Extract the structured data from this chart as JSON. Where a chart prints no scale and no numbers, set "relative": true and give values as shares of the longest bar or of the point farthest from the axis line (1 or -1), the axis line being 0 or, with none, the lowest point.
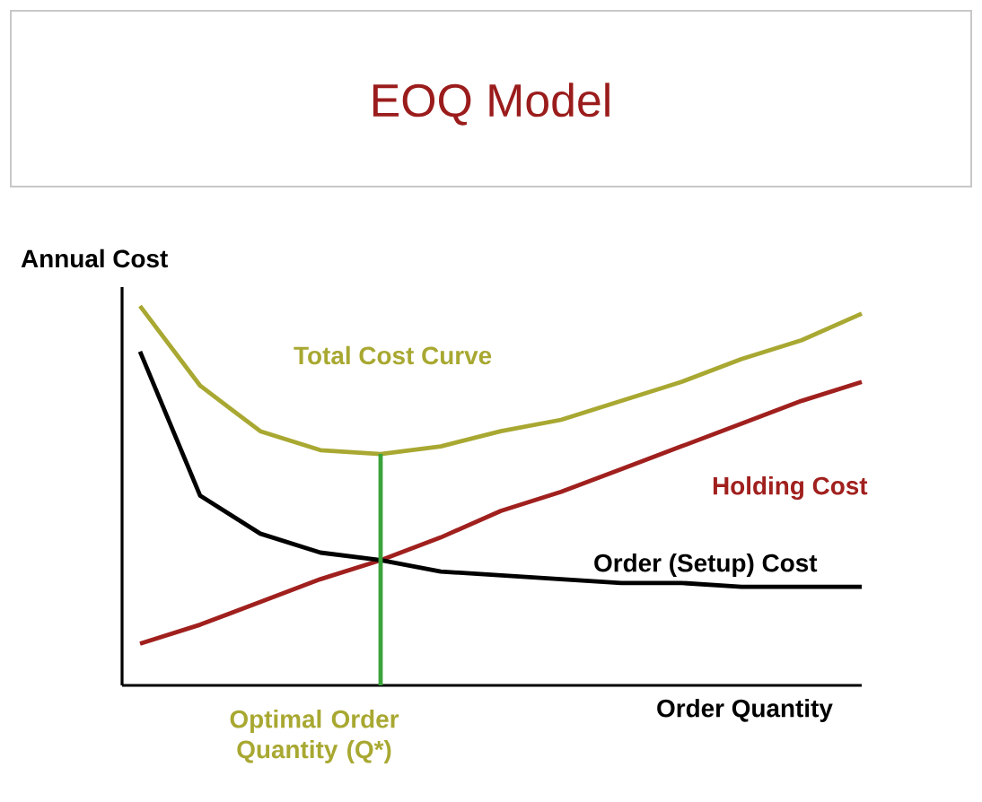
{
  "chart_data": {
    "type": "line",
    "title": "EOQ Model",
    "ylabel": "Annual Cost",
    "xlabel": "Order Quantity",
    "relative": true,
    "tick_labels": false,
    "marker": "none",
    "line_style": "solid",
    "categories": [
      null,
      null,
      null,
      null,
      null,
      null,
      null,
      null,
      null,
      null,
      null,
      null,
      null
    ],
    "series": [
      {
        "name": "Total Cost Curve",
        "color": "#a8a832",
        "values": [
          1,
          0.79,
          0.67,
          0.62,
          0.61,
          0.63,
          0.67,
          0.7,
          0.75,
          0.8,
          0.86,
          0.91,
          0.98
        ]
      },
      {
        "name": "Holding Cost",
        "color": "#a0201e",
        "values": [
          0.11,
          0.16,
          0.22,
          0.28,
          0.33,
          0.39,
          0.46,
          0.51,
          0.57,
          0.63,
          0.69,
          0.75,
          0.8
        ]
      },
      {
        "name": "Order (Setup) Cost",
        "color": "#000000",
        "values": [
          0.88,
          0.5,
          0.4,
          0.35,
          0.33,
          0.3,
          0.29,
          0.28,
          0.27,
          0.27,
          0.26,
          0.26,
          0.26
        ]
      }
    ],
    "annotations": [
      "Optimal Order Quantity (Q*)"
    ]
  }
}
